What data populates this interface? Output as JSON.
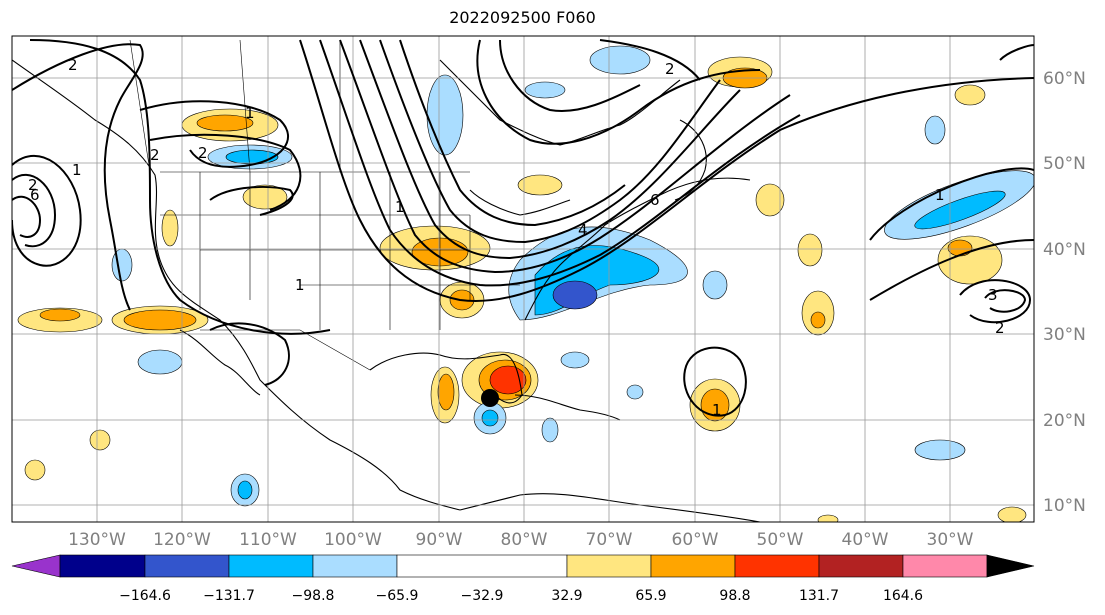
{
  "title": "2022092500 F060",
  "latitude_labels": [
    "60°N",
    "50°N",
    "40°N",
    "30°N",
    "20°N",
    "10°N"
  ],
  "longitude_labels": [
    "130°W",
    "120°W",
    "110°W",
    "100°W",
    "90°W",
    "80°W",
    "70°W",
    "60°W",
    "50°W",
    "40°W",
    "30°W"
  ],
  "colorbar": {
    "colors": [
      "#9933cc",
      "#00008b",
      "#3355cc",
      "#00bbff",
      "#aaddff",
      "#ffffff",
      "#ffe680",
      "#ffa500",
      "#ff3300",
      "#b22222",
      "#ff88aa"
    ],
    "tick_labels": [
      "−164.6",
      "−131.7",
      "−98.8",
      "−65.9",
      "−32.9",
      "32.9",
      "65.9",
      "98.8",
      "131.7",
      "164.6"
    ]
  },
  "contour_labels": [
    "2",
    "2",
    "1",
    "2",
    "1",
    "1",
    "2",
    "1",
    "3",
    "2",
    "1",
    "1",
    "6",
    "4",
    "2",
    "6"
  ],
  "storm_marker": {
    "label": "",
    "color": "#000000"
  }
}
